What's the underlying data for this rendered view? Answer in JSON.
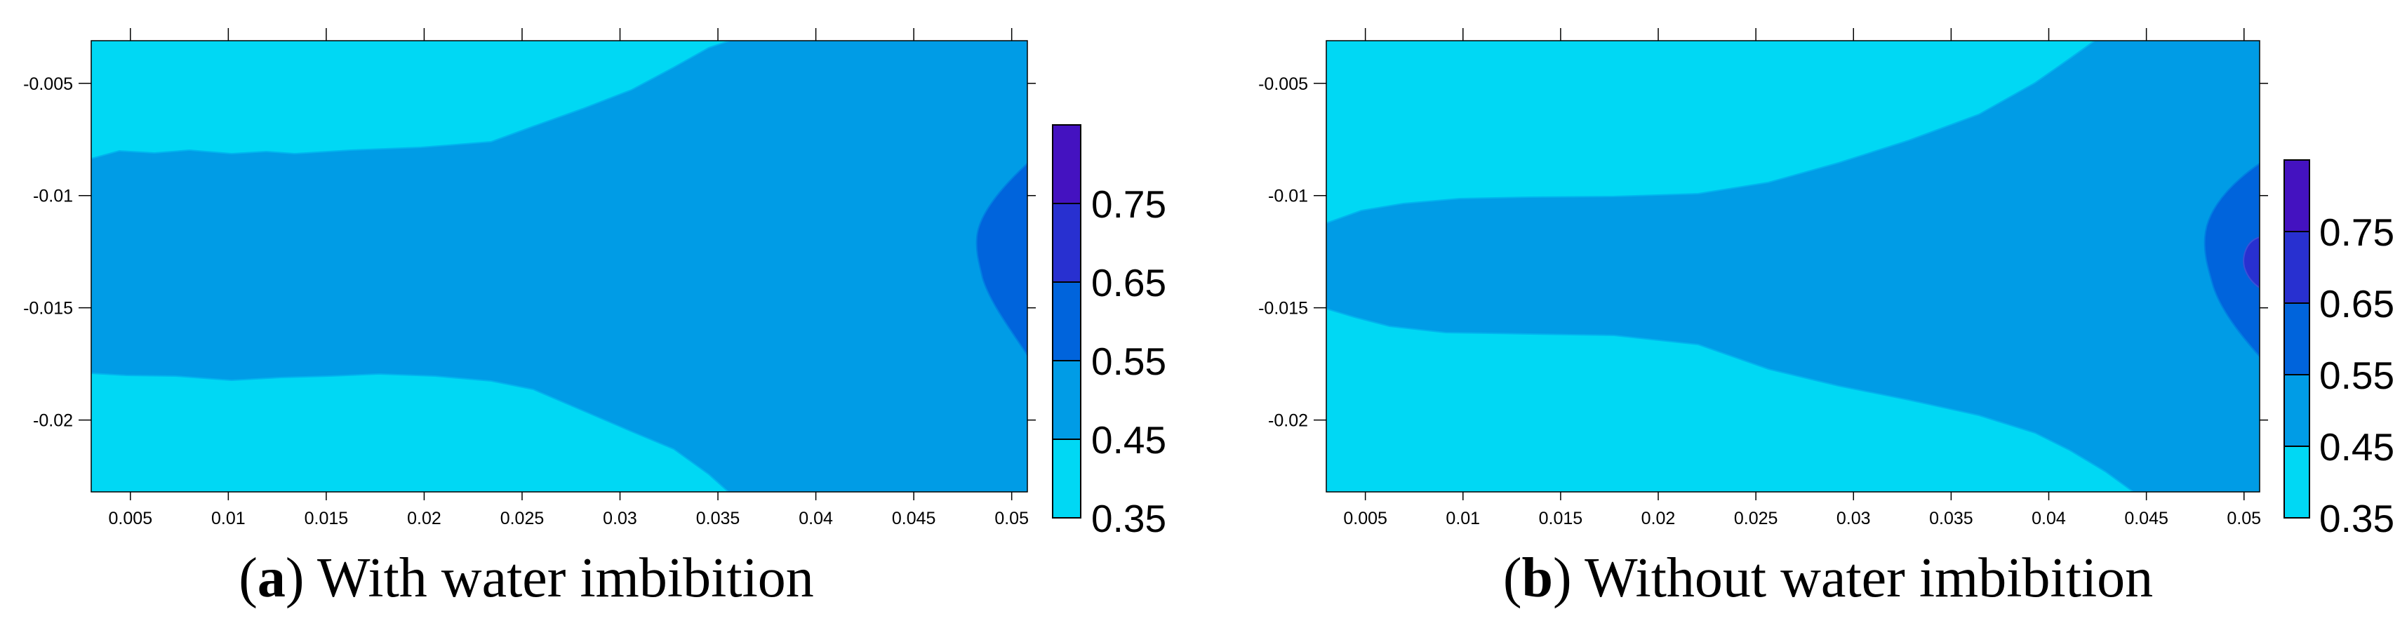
{
  "chart_data": [
    {
      "type": "contour",
      "panel": "a",
      "caption_letter": "a",
      "caption_text": "With water imbibition",
      "xlabel": "",
      "ylabel": "",
      "xlim": [
        0.003,
        0.0508
      ],
      "ylim": [
        -0.0232,
        -0.0031
      ],
      "x_ticks": [
        0.005,
        0.01,
        0.015,
        0.02,
        0.025,
        0.03,
        0.035,
        0.04,
        0.045,
        0.05
      ],
      "x_tick_labels": [
        "0.005",
        "0.01",
        "0.015",
        "0.02",
        "0.025",
        "0.03",
        "0.035",
        "0.04",
        "0.045",
        "0.05"
      ],
      "y_ticks": [
        -0.005,
        -0.01,
        -0.015,
        -0.02
      ],
      "y_tick_labels": [
        "-0.005",
        "-0.01",
        "-0.015",
        "-0.02"
      ],
      "grid": false,
      "levels": [
        0.35,
        0.45,
        0.55,
        0.65,
        0.75
      ],
      "level_labels": [
        "0.35",
        "0.45",
        "0.55",
        "0.65",
        "0.75"
      ],
      "level_colors": [
        "#00d8f4",
        "#009ce6",
        "#0064dc",
        "#2830d0",
        "#4412c0"
      ],
      "level_bands": [
        {
          "range": [
            0.35,
            0.45
          ],
          "region": "upper and lower edges, x < ~0.036"
        },
        {
          "range": [
            0.45,
            0.55
          ],
          "region": "central band widening toward x = 0.05"
        },
        {
          "range": [
            0.55,
            0.65
          ],
          "region": "near right boundary x > ~0.048, y ≈ -0.009 to -0.017"
        }
      ]
    },
    {
      "type": "contour",
      "panel": "b",
      "caption_letter": "b",
      "caption_text": "Without water imbibition",
      "xlabel": "",
      "ylabel": "",
      "xlim": [
        0.003,
        0.0508
      ],
      "ylim": [
        -0.0232,
        -0.0031
      ],
      "x_ticks": [
        0.005,
        0.01,
        0.015,
        0.02,
        0.025,
        0.03,
        0.035,
        0.04,
        0.045,
        0.05
      ],
      "x_tick_labels": [
        "0.005",
        "0.01",
        "0.015",
        "0.02",
        "0.025",
        "0.03",
        "0.035",
        "0.04",
        "0.045",
        "0.05"
      ],
      "y_ticks": [
        -0.005,
        -0.01,
        -0.015,
        -0.02
      ],
      "y_tick_labels": [
        "-0.005",
        "-0.01",
        "-0.015",
        "-0.02"
      ],
      "grid": false,
      "levels": [
        0.35,
        0.45,
        0.55,
        0.65,
        0.75
      ],
      "level_labels": [
        "0.35",
        "0.45",
        "0.55",
        "0.65",
        "0.75"
      ],
      "level_colors": [
        "#00d8f4",
        "#009ce6",
        "#0064dc",
        "#2830d0",
        "#4412c0"
      ],
      "level_bands": [
        {
          "range": [
            0.35,
            0.45
          ],
          "region": "upper and lower edges, x < ~0.041"
        },
        {
          "range": [
            0.45,
            0.55
          ],
          "region": "central band widening toward x = 0.05"
        },
        {
          "range": [
            0.55,
            0.65
          ],
          "region": "near right boundary x > ~0.048, y ≈ -0.007 to -0.019"
        },
        {
          "range": [
            0.65,
            0.75
          ],
          "region": "small spot at right boundary, y ≈ -0.013"
        }
      ]
    }
  ]
}
